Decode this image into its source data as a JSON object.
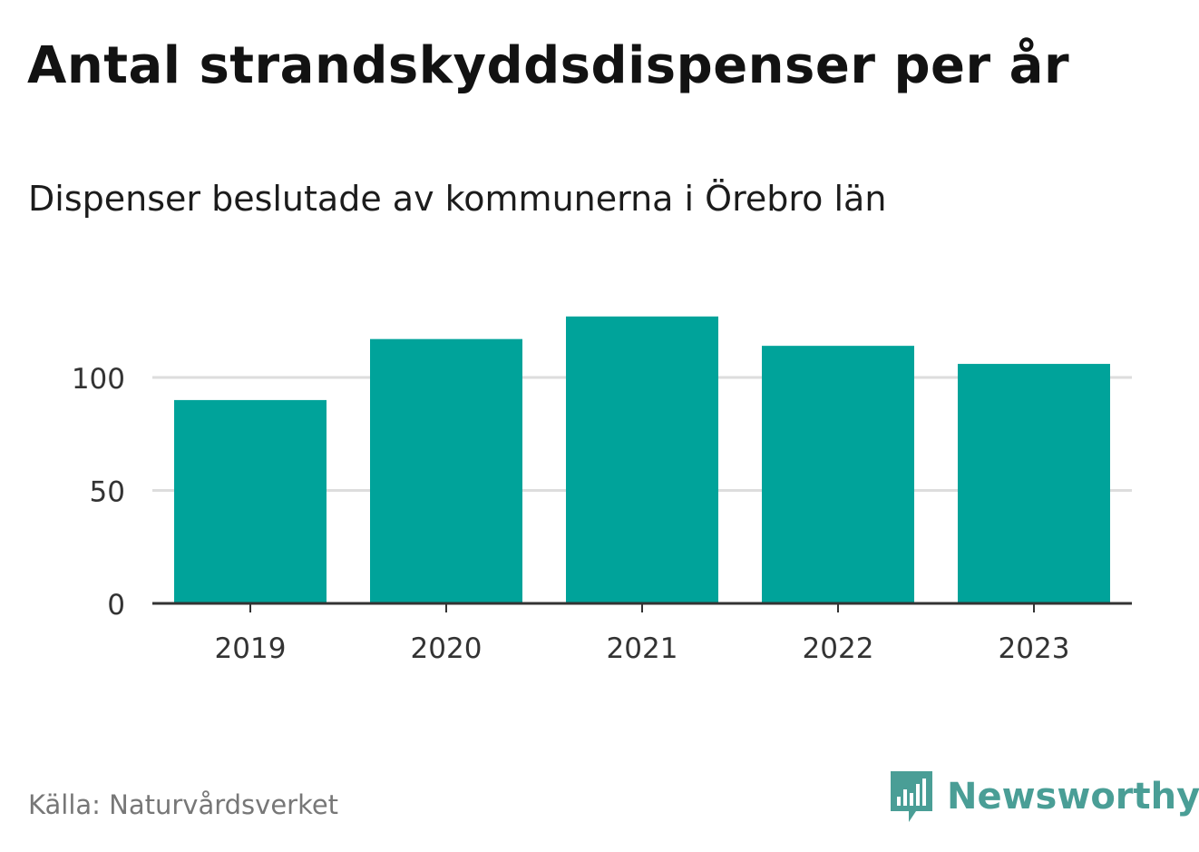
{
  "title": "Antal strandskyddsdispenser per år",
  "subtitle": "Dispenser beslutade av kommunerna i Örebro län",
  "source": "Källa: Naturvårdsverket",
  "brand": {
    "name": "Newsworthy",
    "color": "#4a9e96"
  },
  "colors": {
    "bar": "#00a39a",
    "grid": "#dddddd",
    "axis": "#333333",
    "tick_text": "#333333"
  },
  "chart_data": {
    "type": "bar",
    "title": "Antal strandskyddsdispenser per år",
    "subtitle": "Dispenser beslutade av kommunerna i Örebro län",
    "categories": [
      "2019",
      "2020",
      "2021",
      "2022",
      "2023"
    ],
    "values": [
      90,
      117,
      127,
      114,
      106
    ],
    "xlabel": "",
    "ylabel": "",
    "ylim": [
      0,
      127
    ],
    "yticks": [
      0,
      50,
      100
    ],
    "ytick_labels": [
      "0",
      "50",
      "100"
    ],
    "grid": true,
    "legend": "none"
  }
}
